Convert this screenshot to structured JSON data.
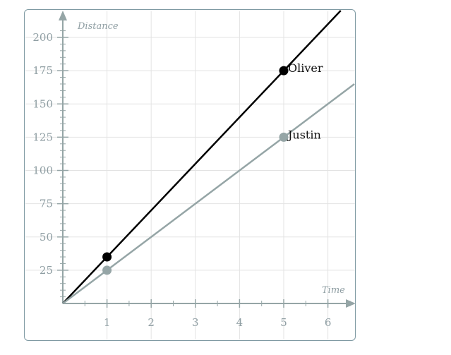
{
  "chart_data": {
    "type": "line",
    "xlabel": "Time",
    "ylabel": "Distance",
    "xlim": [
      0,
      6.6
    ],
    "ylim": [
      0,
      210
    ],
    "x_ticks": [
      1,
      2,
      3,
      4,
      5,
      6
    ],
    "y_ticks": [
      25,
      50,
      75,
      100,
      125,
      150,
      175,
      200
    ],
    "grid": true,
    "series": [
      {
        "name": "Oliver",
        "color": "#000000",
        "slope": 35,
        "points": [
          {
            "x": 1,
            "y": 35
          },
          {
            "x": 5,
            "y": 175
          }
        ]
      },
      {
        "name": "Justin",
        "color": "#95a5a6",
        "slope": 25,
        "points": [
          {
            "x": 1,
            "y": 25
          },
          {
            "x": 5,
            "y": 125
          }
        ]
      }
    ]
  }
}
